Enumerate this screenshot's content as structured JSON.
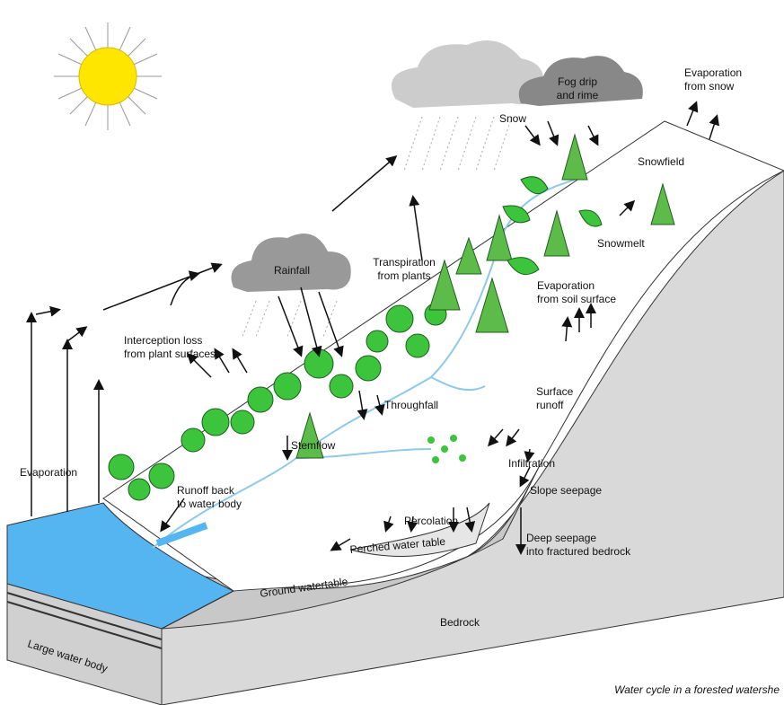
{
  "labels": [
    {
      "lines": [
        "Fog drip",
        "and rime"
      ]
    },
    {
      "lines": [
        "Evaporation",
        "from snow"
      ]
    },
    {
      "lines": [
        "Snow"
      ]
    },
    {
      "lines": [
        "Snowfield"
      ]
    },
    {
      "lines": [
        "Rainfall"
      ]
    },
    {
      "lines": [
        "Transpiration",
        "from plants"
      ]
    },
    {
      "lines": [
        "Evaporation",
        "from soil surface"
      ]
    },
    {
      "lines": [
        "Snowmelt"
      ]
    },
    {
      "lines": [
        "Interception loss",
        "from plant surfaces"
      ]
    },
    {
      "lines": [
        "Throughfall"
      ]
    },
    {
      "lines": [
        "Surface",
        "runoff"
      ]
    },
    {
      "lines": [
        "Stemflow"
      ]
    },
    {
      "lines": [
        "Infiltration"
      ]
    },
    {
      "lines": [
        "Slope seepage"
      ]
    },
    {
      "lines": [
        "Evaporation"
      ]
    },
    {
      "lines": [
        "Runoff back",
        "to water body"
      ]
    },
    {
      "lines": [
        "Percolation"
      ]
    },
    {
      "lines": [
        "Perched water table"
      ]
    },
    {
      "lines": [
        "Deep seepage",
        "into fractured bedrock"
      ]
    },
    {
      "lines": [
        "Ground watertable"
      ]
    },
    {
      "lines": [
        "Large water body"
      ]
    },
    {
      "lines": [
        "Bedrock"
      ]
    }
  ],
  "caption": "Water cycle in a forested watershe"
}
